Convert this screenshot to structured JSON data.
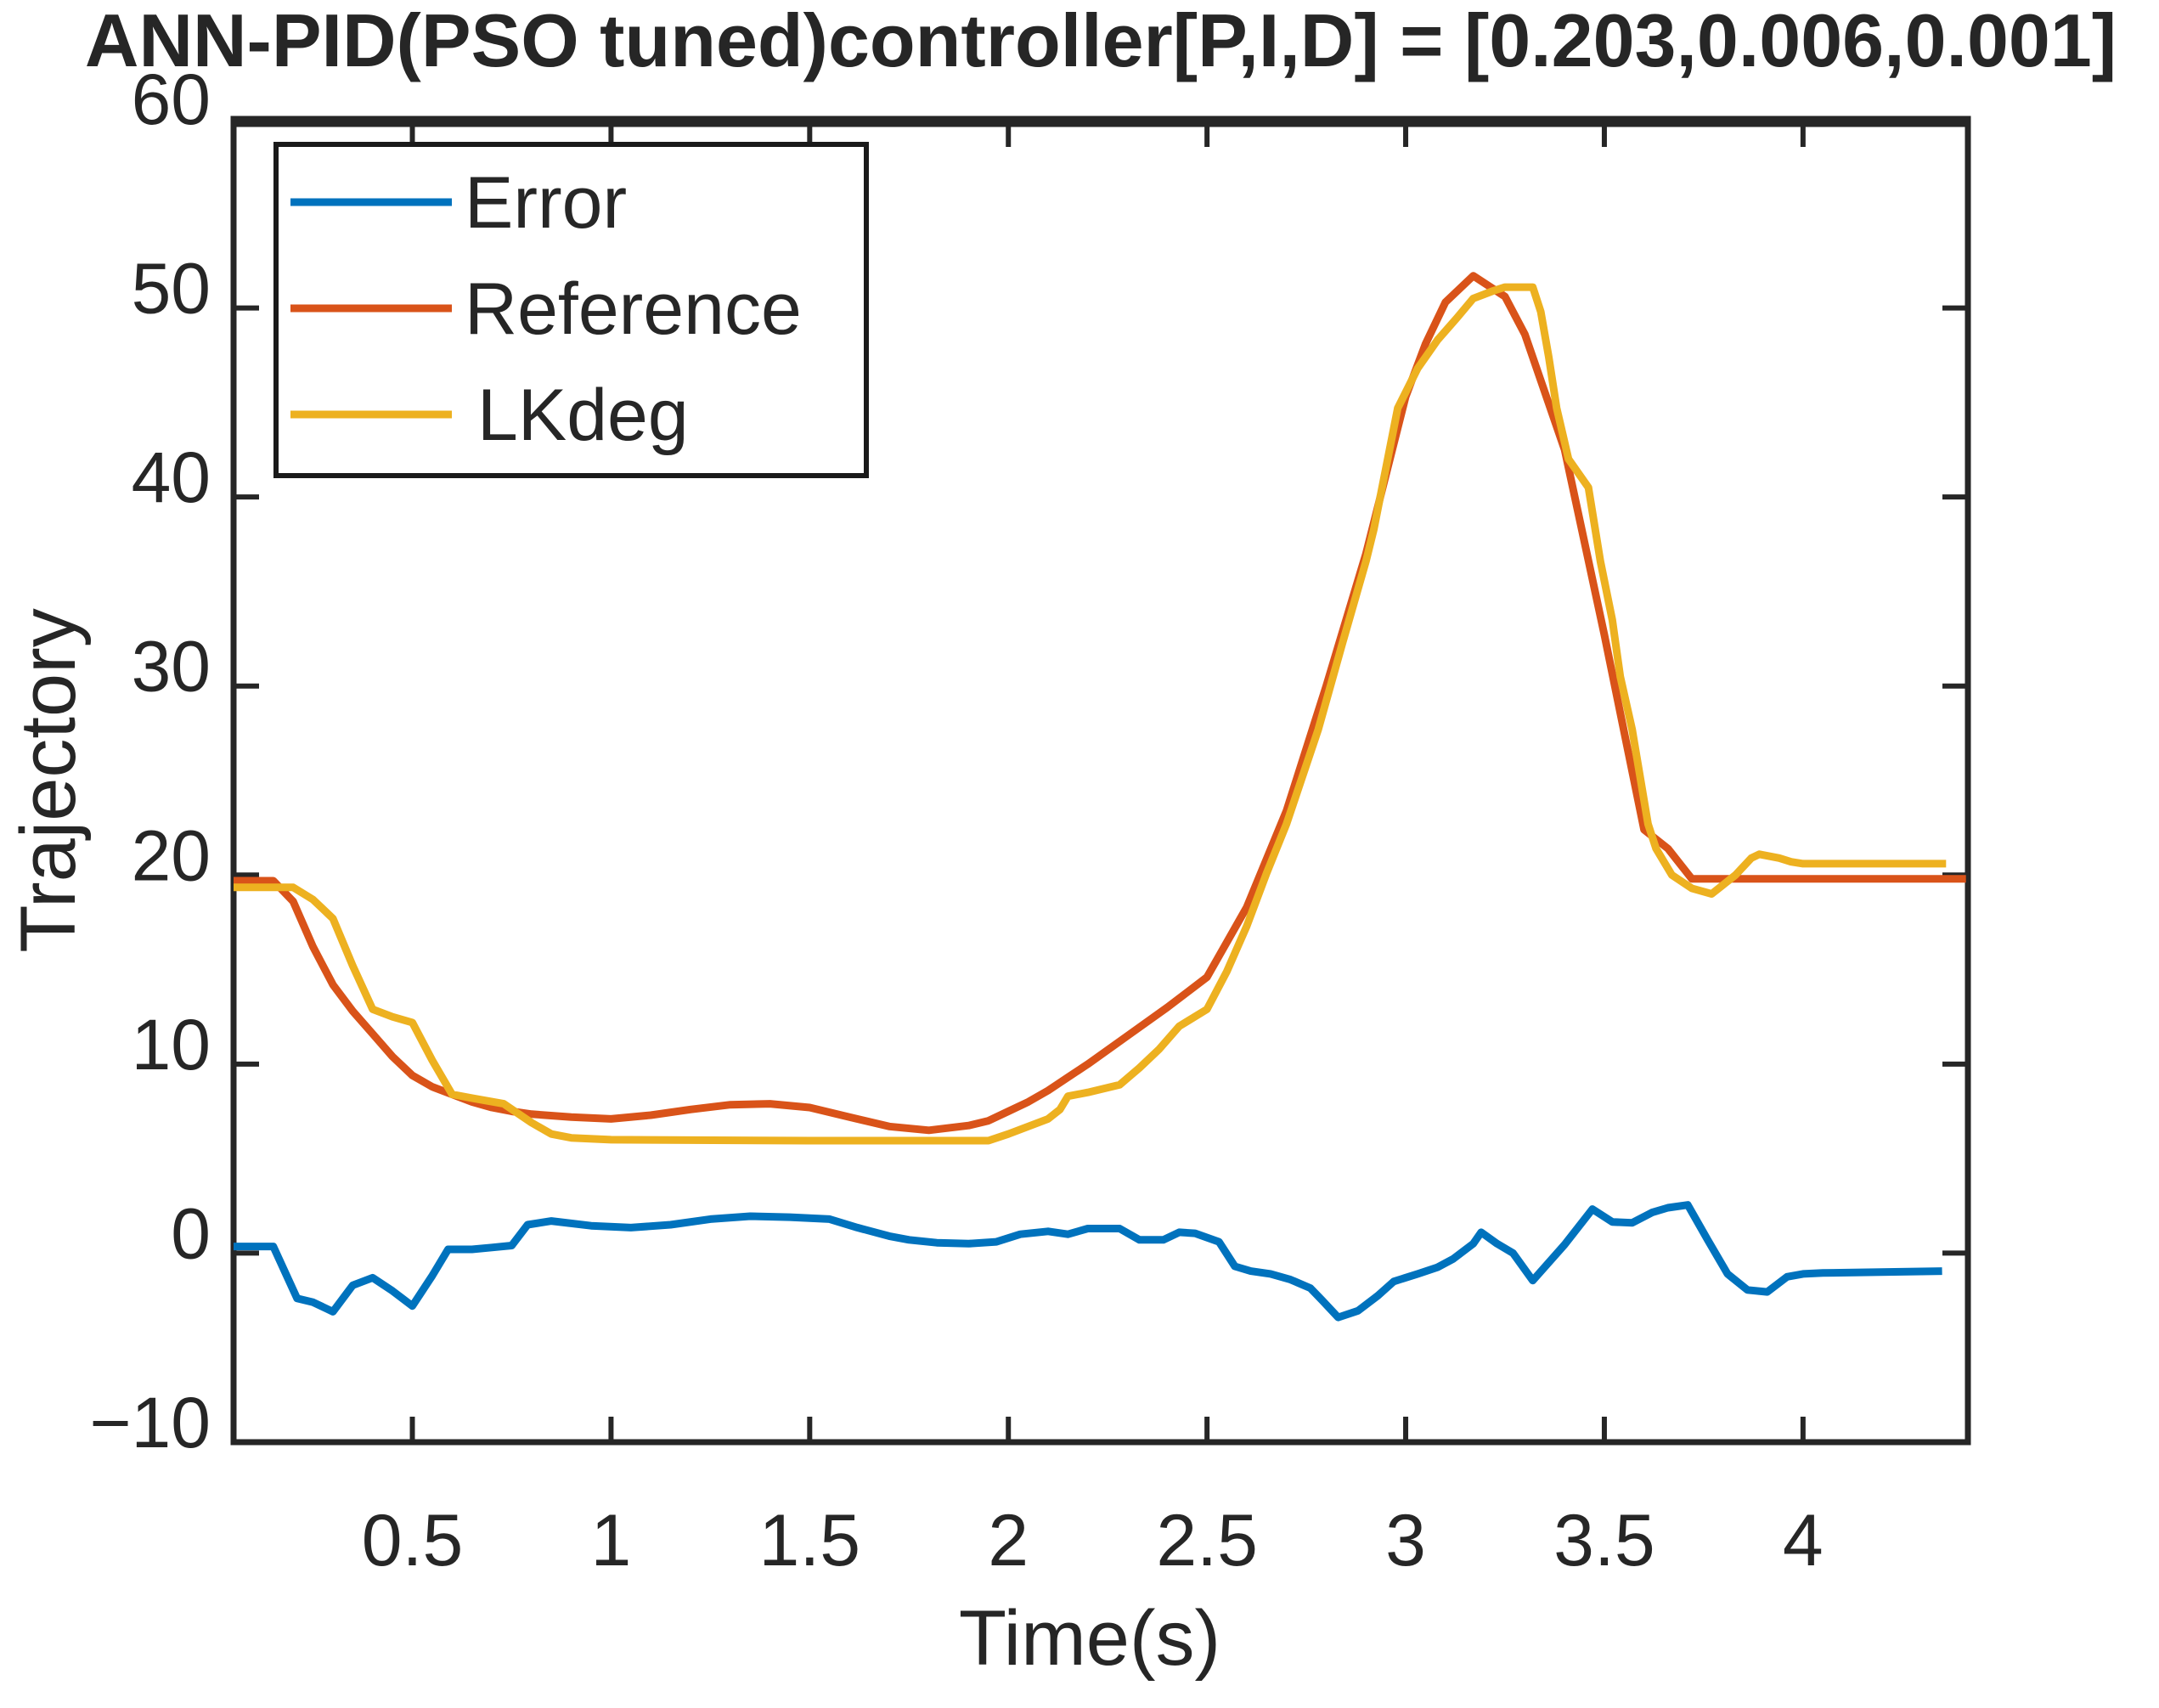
{
  "title": "ANN-PID(PSO tuned)controller[P,I,D] = [0.203,0.006,0.001]",
  "axes": {
    "xlabel": "Time(s)",
    "ylabel": "Trajectory",
    "xlim": [
      0.05,
      4.415
    ],
    "ylim": [
      -10,
      60
    ],
    "xticks": {
      "values": [
        0.5,
        1,
        1.5,
        2,
        2.5,
        3,
        3.5,
        4
      ],
      "labels": [
        "0.5",
        "1",
        "1.5",
        "2",
        "2.5",
        "3",
        "3.5",
        "4"
      ]
    },
    "yticks": {
      "values": [
        -10,
        0,
        10,
        20,
        30,
        40,
        50,
        60
      ],
      "labels": [
        "−10",
        "0",
        "10",
        "20",
        "30",
        "40",
        "50",
        "60"
      ]
    }
  },
  "legend": {
    "position": "top-left",
    "entries": [
      {
        "label": "Error",
        "color": "#0072BD"
      },
      {
        "label": "Reference",
        "color": "#D95319"
      },
      {
        "label": "LKdeg",
        "color": "#EDB120"
      }
    ]
  },
  "chart_data": {
    "type": "line",
    "title": "ANN-PID(PSO tuned)controller[P,I,D] = [0.203,0.006,0.001]",
    "xlabel": "Time(s)",
    "ylabel": "Trajectory",
    "xlim": [
      0.05,
      4.415
    ],
    "ylim": [
      -10,
      60
    ],
    "grid": false,
    "legend_position": "top-left",
    "series": [
      {
        "name": "Error",
        "color": "#0072BD",
        "points": [
          [
            0.05,
            0.35
          ],
          [
            0.15,
            0.35
          ],
          [
            0.21,
            -2.4
          ],
          [
            0.25,
            -2.6
          ],
          [
            0.3,
            -3.1
          ],
          [
            0.35,
            -1.7
          ],
          [
            0.4,
            -1.3
          ],
          [
            0.45,
            -2.0
          ],
          [
            0.5,
            -2.8
          ],
          [
            0.55,
            -1.2
          ],
          [
            0.59,
            0.2
          ],
          [
            0.65,
            0.2
          ],
          [
            0.7,
            0.3
          ],
          [
            0.75,
            0.4
          ],
          [
            0.79,
            1.5
          ],
          [
            0.85,
            1.7
          ],
          [
            0.95,
            1.45
          ],
          [
            1.05,
            1.35
          ],
          [
            1.15,
            1.5
          ],
          [
            1.25,
            1.8
          ],
          [
            1.35,
            1.95
          ],
          [
            1.45,
            1.9
          ],
          [
            1.55,
            1.8
          ],
          [
            1.62,
            1.35
          ],
          [
            1.7,
            0.9
          ],
          [
            1.75,
            0.7
          ],
          [
            1.82,
            0.55
          ],
          [
            1.9,
            0.5
          ],
          [
            1.97,
            0.6
          ],
          [
            2.03,
            1.0
          ],
          [
            2.1,
            1.15
          ],
          [
            2.15,
            1.0
          ],
          [
            2.2,
            1.3
          ],
          [
            2.28,
            1.3
          ],
          [
            2.33,
            0.7
          ],
          [
            2.39,
            0.7
          ],
          [
            2.43,
            1.1
          ],
          [
            2.47,
            1.05
          ],
          [
            2.53,
            0.6
          ],
          [
            2.57,
            -0.7
          ],
          [
            2.61,
            -0.95
          ],
          [
            2.66,
            -1.1
          ],
          [
            2.71,
            -1.4
          ],
          [
            2.76,
            -1.85
          ],
          [
            2.79,
            -2.5
          ],
          [
            2.83,
            -3.4
          ],
          [
            2.88,
            -3.05
          ],
          [
            2.93,
            -2.25
          ],
          [
            2.97,
            -1.5
          ],
          [
            3.03,
            -1.1
          ],
          [
            3.08,
            -0.75
          ],
          [
            3.12,
            -0.3
          ],
          [
            3.17,
            0.5
          ],
          [
            3.19,
            1.1
          ],
          [
            3.23,
            0.5
          ],
          [
            3.27,
            0.0
          ],
          [
            3.32,
            -1.45
          ],
          [
            3.4,
            0.45
          ],
          [
            3.47,
            2.33
          ],
          [
            3.52,
            1.65
          ],
          [
            3.57,
            1.6
          ],
          [
            3.62,
            2.15
          ],
          [
            3.66,
            2.4
          ],
          [
            3.71,
            2.55
          ],
          [
            3.76,
            0.7
          ],
          [
            3.81,
            -1.1
          ],
          [
            3.86,
            -1.95
          ],
          [
            3.91,
            -2.05
          ],
          [
            3.96,
            -1.25
          ],
          [
            4.0,
            -1.1
          ],
          [
            4.05,
            -1.05
          ],
          [
            4.35,
            -0.95
          ]
        ]
      },
      {
        "name": "Reference",
        "color": "#D95319",
        "points": [
          [
            0.05,
            19.7
          ],
          [
            0.15,
            19.7
          ],
          [
            0.2,
            18.6
          ],
          [
            0.25,
            16.2
          ],
          [
            0.3,
            14.2
          ],
          [
            0.35,
            12.8
          ],
          [
            0.4,
            11.6
          ],
          [
            0.45,
            10.4
          ],
          [
            0.5,
            9.4
          ],
          [
            0.55,
            8.8
          ],
          [
            0.6,
            8.4
          ],
          [
            0.65,
            8.0
          ],
          [
            0.7,
            7.7
          ],
          [
            0.75,
            7.5
          ],
          [
            0.8,
            7.35
          ],
          [
            0.9,
            7.2
          ],
          [
            1.0,
            7.1
          ],
          [
            1.1,
            7.3
          ],
          [
            1.2,
            7.6
          ],
          [
            1.3,
            7.85
          ],
          [
            1.4,
            7.9
          ],
          [
            1.5,
            7.7
          ],
          [
            1.6,
            7.2
          ],
          [
            1.7,
            6.7
          ],
          [
            1.8,
            6.5
          ],
          [
            1.9,
            6.75
          ],
          [
            1.95,
            7.0
          ],
          [
            2.0,
            7.5
          ],
          [
            2.05,
            8.0
          ],
          [
            2.1,
            8.6
          ],
          [
            2.15,
            9.3
          ],
          [
            2.2,
            10.0
          ],
          [
            2.3,
            11.5
          ],
          [
            2.4,
            13.0
          ],
          [
            2.5,
            14.6
          ],
          [
            2.6,
            18.3
          ],
          [
            2.7,
            23.4
          ],
          [
            2.8,
            30.0
          ],
          [
            2.9,
            37.0
          ],
          [
            3.0,
            45.3
          ],
          [
            3.05,
            48.1
          ],
          [
            3.1,
            50.3
          ],
          [
            3.17,
            51.7
          ],
          [
            3.25,
            50.6
          ],
          [
            3.3,
            48.6
          ],
          [
            3.4,
            42.5
          ],
          [
            3.5,
            32.7
          ],
          [
            3.6,
            22.4
          ],
          [
            3.66,
            21.4
          ],
          [
            3.72,
            19.8
          ],
          [
            4.0,
            19.8
          ],
          [
            4.41,
            19.8
          ]
        ]
      },
      {
        "name": "LKdeg",
        "color": "#EDB120",
        "points": [
          [
            0.05,
            19.35
          ],
          [
            0.2,
            19.35
          ],
          [
            0.25,
            18.7
          ],
          [
            0.3,
            17.7
          ],
          [
            0.35,
            15.2
          ],
          [
            0.4,
            12.9
          ],
          [
            0.45,
            12.5
          ],
          [
            0.5,
            12.2
          ],
          [
            0.55,
            10.2
          ],
          [
            0.6,
            8.4
          ],
          [
            0.65,
            8.2
          ],
          [
            0.73,
            7.9
          ],
          [
            0.8,
            6.9
          ],
          [
            0.85,
            6.3
          ],
          [
            0.9,
            6.1
          ],
          [
            1.0,
            6.0
          ],
          [
            1.5,
            5.95
          ],
          [
            1.95,
            5.95
          ],
          [
            2.0,
            6.3
          ],
          [
            2.05,
            6.7
          ],
          [
            2.1,
            7.1
          ],
          [
            2.13,
            7.6
          ],
          [
            2.15,
            8.3
          ],
          [
            2.2,
            8.5
          ],
          [
            2.28,
            8.9
          ],
          [
            2.33,
            9.8
          ],
          [
            2.38,
            10.8
          ],
          [
            2.43,
            12.0
          ],
          [
            2.5,
            12.9
          ],
          [
            2.55,
            14.9
          ],
          [
            2.6,
            17.3
          ],
          [
            2.65,
            20.1
          ],
          [
            2.7,
            22.7
          ],
          [
            2.78,
            27.7
          ],
          [
            2.84,
            32.2
          ],
          [
            2.9,
            36.6
          ],
          [
            2.92,
            38.3
          ],
          [
            2.98,
            44.7
          ],
          [
            3.03,
            46.8
          ],
          [
            3.08,
            48.3
          ],
          [
            3.13,
            49.5
          ],
          [
            3.17,
            50.5
          ],
          [
            3.22,
            50.9
          ],
          [
            3.25,
            51.1
          ],
          [
            3.32,
            51.1
          ],
          [
            3.34,
            49.8
          ],
          [
            3.36,
            47.4
          ],
          [
            3.38,
            44.7
          ],
          [
            3.41,
            42.0
          ],
          [
            3.46,
            40.5
          ],
          [
            3.49,
            36.6
          ],
          [
            3.52,
            33.5
          ],
          [
            3.54,
            30.5
          ],
          [
            3.57,
            27.7
          ],
          [
            3.61,
            22.7
          ],
          [
            3.63,
            21.4
          ],
          [
            3.67,
            20.0
          ],
          [
            3.72,
            19.3
          ],
          [
            3.77,
            19.0
          ],
          [
            3.83,
            20.0
          ],
          [
            3.87,
            20.9
          ],
          [
            3.89,
            21.1
          ],
          [
            3.94,
            20.9
          ],
          [
            3.97,
            20.7
          ],
          [
            4.0,
            20.6
          ],
          [
            4.36,
            20.6
          ]
        ]
      }
    ]
  },
  "plot_style": {
    "axis_color": "#262626",
    "title_color": "#000000",
    "background": "#ffffff",
    "line_width": 9
  }
}
